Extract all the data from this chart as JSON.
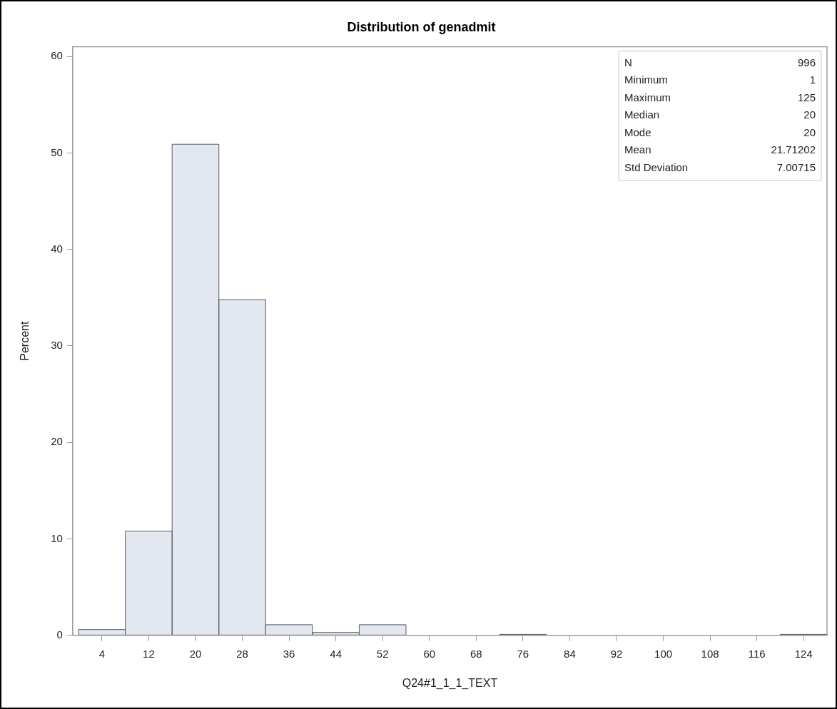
{
  "chart_data": {
    "type": "histogram",
    "title": "Distribution of genadmit",
    "xlabel": "Q24#1_1_1_TEXT",
    "ylabel": "Percent",
    "bins": [
      0,
      8,
      16,
      24,
      32,
      40,
      48,
      56,
      64,
      72,
      80,
      88,
      96,
      104,
      112,
      120,
      128
    ],
    "values": [
      0.6,
      10.8,
      50.9,
      34.8,
      1.1,
      0.3,
      1.1,
      0,
      0,
      0.1,
      0,
      0,
      0,
      0,
      0,
      0.1
    ],
    "color": "#e3e7f0",
    "xlim": [
      -1,
      128
    ],
    "xticks": [
      4,
      12,
      20,
      28,
      36,
      44,
      52,
      60,
      68,
      76,
      84,
      92,
      100,
      108,
      116,
      124
    ],
    "ylim": [
      0,
      61
    ],
    "yticks": [
      0,
      10,
      20,
      30,
      40,
      50,
      60
    ],
    "grid": false,
    "legend": false,
    "annotations": [
      "N 996",
      "Minimum 1",
      "Maximum 125",
      "Median 20",
      "Mode 20",
      "Mean 21.71202",
      "Std Deviation 7.00715"
    ]
  }
}
